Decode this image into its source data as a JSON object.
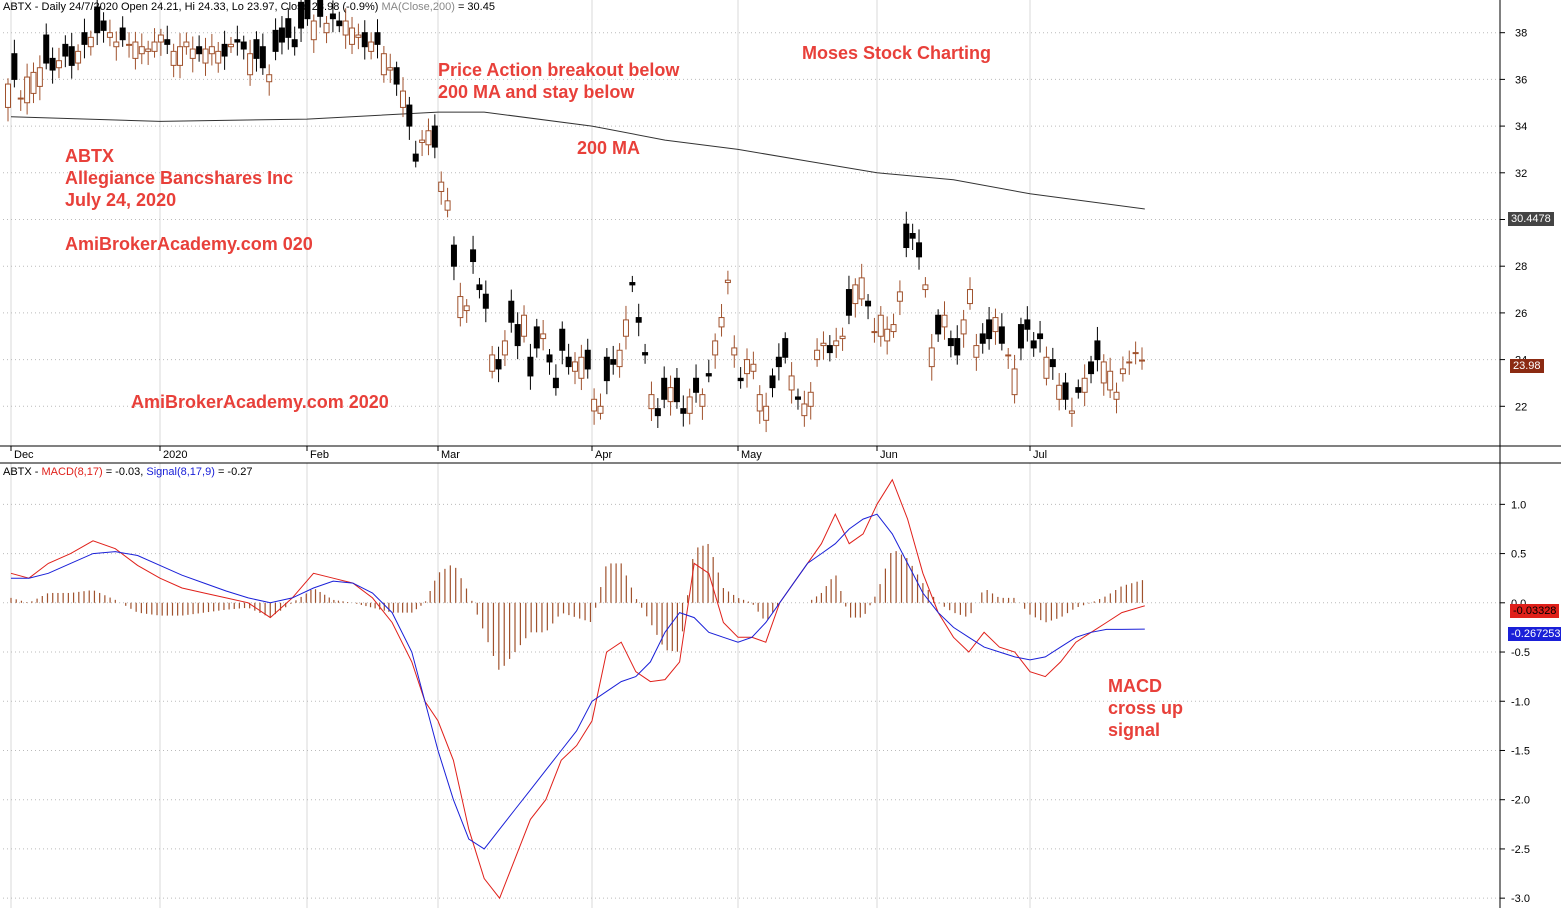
{
  "price_header": {
    "prefix": "ABTX - Daily 24/7/2020 Open 24.21, Hi 24.33, Lo 23.97, Close 23.98 (-0.9%)",
    "ma_label": "MA(Close,200)",
    "ma_value": "= 30.45"
  },
  "macd_header": {
    "prefix": "ABTX - ",
    "macd_label": "MACD(8,17)",
    "macd_value": "= -0.03,",
    "signal_label": "Signal(8,17,9)",
    "signal_value": "= -0.27"
  },
  "annotations": {
    "company_ticker": "ABTX",
    "company_name": "Allegiance Bancshares Inc",
    "company_date": "July 24, 2020",
    "watermark_1": "AmiBrokerAcademy.com  020",
    "watermark_2": "AmiBrokerAcademy.com  2020",
    "breakout_line1": "Price Action breakout below",
    "breakout_line2": "200 MA and stay below",
    "ma_label": "200 MA",
    "brand": "Moses Stock Charting",
    "macd_line1": "MACD",
    "macd_line2": "cross up",
    "macd_line3": "signal"
  },
  "badges": {
    "ma_value": "30.4478",
    "close_value": "23.98",
    "macd_value": "-0.03328",
    "signal_value": "-0.267253"
  },
  "colors": {
    "up_candle": "#a0522d",
    "down_candle": "#000000",
    "macd_line": "#e0201a",
    "signal_line": "#1a20d8",
    "histogram": "#a0522d",
    "annotation": "#e8403a",
    "ma_line": "#333333"
  },
  "chart_data": [
    {
      "type": "candlestick",
      "title": "ABTX - Daily",
      "x_labels": [
        "Dec",
        "2020",
        "Feb",
        "Mar",
        "Apr",
        "May",
        "Jun",
        "Jul"
      ],
      "ylim": [
        20.3,
        39.4
      ],
      "yticks": [
        22,
        24,
        26,
        28,
        30,
        32,
        34,
        36,
        38
      ],
      "moving_average": {
        "name": "MA(Close,200)",
        "x_months": [
          0.0,
          1.0,
          2.0,
          3.0,
          3.3,
          4.0,
          4.5,
          5.0,
          5.5,
          6.0,
          6.5,
          7.0,
          7.75
        ],
        "values": [
          34.4,
          34.2,
          34.3,
          34.6,
          34.6,
          34.0,
          33.4,
          33.0,
          32.5,
          32.0,
          31.7,
          31.1,
          30.45
        ]
      },
      "closes": [
        35.8,
        36.0,
        35.2,
        36.1,
        36.3,
        36.5,
        36.7,
        36.4,
        36.8,
        37.0,
        36.6,
        37.2,
        37.5,
        37.8,
        38.0,
        38.1,
        38.0,
        37.6,
        37.7,
        37.5,
        37.6,
        37.4,
        37.3,
        37.6,
        37.9,
        37.5,
        37.2,
        37.4,
        37.6,
        37.3,
        37.1,
        37.3,
        37.4,
        37.2,
        37.0,
        37.5,
        37.6,
        37.3,
        37.1,
        36.9,
        36.5,
        36.2,
        37.2,
        37.6,
        37.8,
        37.4,
        38.2,
        38.6,
        38.5,
        38.7,
        38.4,
        38.6,
        38.3,
        38.5,
        38.2,
        37.9,
        37.4,
        37.6,
        37.5,
        37.1,
        36.5,
        35.8,
        35.5,
        34.0,
        32.5,
        33.4,
        33.8,
        33.1,
        31.6,
        30.8,
        28.0,
        26.7,
        26.3,
        28.2,
        27.0,
        26.2,
        24.2,
        23.6,
        24.8,
        25.6,
        24.6,
        25.9,
        23.3,
        24.5,
        25.1,
        23.9,
        22.8,
        24.4,
        23.7,
        23.9,
        24.1,
        23.6,
        22.3,
        22.0,
        23.1,
        23.8,
        24.4,
        25.7,
        27.2,
        25.6,
        24.2,
        22.5,
        21.6,
        22.3,
        22.8,
        22.2,
        21.7,
        22.4,
        22.6,
        22.5,
        23.3,
        24.8,
        25.8,
        27.4,
        24.5,
        23.1,
        24.0,
        23.8,
        22.5,
        22.0,
        22.8,
        23.7,
        24.1,
        23.3,
        22.3,
        22.1,
        22.6,
        24.4,
        24.7,
        24.3,
        24.8,
        25.0,
        25.9,
        27.2,
        27.5,
        26.3,
        25.2,
        25.9,
        25.3,
        25.5,
        26.9,
        28.8,
        29.2,
        28.4,
        27.2,
        24.5,
        25.1,
        25.9,
        24.6,
        24.2,
        25.7,
        27.0,
        24.6,
        24.7,
        24.9,
        25.8,
        24.7,
        24.2,
        23.6,
        24.5,
        25.3,
        24.5,
        24.9,
        24.1,
        23.7,
        22.9,
        22.3,
        21.8,
        22.6,
        23.2,
        23.4,
        24.0,
        23.9,
        23.5,
        22.6,
        23.6,
        23.9,
        24.3,
        23.98
      ],
      "moves": [
        1.0,
        -1.1,
        0.0,
        1.1,
        0.9,
        0.8,
        -1.2,
        -0.5,
        0.3,
        -0.5,
        -0.8,
        0.5,
        -0.5,
        0.4,
        -1.1,
        -0.4,
        0.2,
        0.2,
        -0.5,
        0.0,
        0.7,
        0.3,
        0.1,
        0.4,
        0.3,
        -0.2,
        0.6,
        0.8,
        0.2,
        0.4,
        -0.3,
        0.6,
        0.3,
        0.5,
        -0.5,
        0.1,
        -0.1,
        -0.3,
        0.9,
        -0.8,
        -0.9,
        0.3,
        -0.9,
        -0.6,
        -0.8,
        -0.3,
        -1.1,
        -1.1,
        0.8,
        -1.1,
        0.4,
        -0.2,
        -0.2,
        0.6,
        0.7,
        0.1,
        -0.6,
        0.4,
        -0.5,
        0.9,
        0.1,
        -0.7,
        0.7,
        -0.9,
        -0.3,
        0.1,
        0.6,
        -0.9,
        0.4,
        0.4,
        -0.9,
        0.9,
        0.2,
        -0.5,
        -0.2,
        -0.6,
        0.7,
        -0.4,
        0.6,
        -0.9,
        -0.9,
        0.9,
        -0.8,
        -0.9,
        0.2,
        -0.3,
        -0.4,
        -0.9,
        -0.4,
        0.4,
        0.9,
        -0.8,
        0.5,
        0.3,
        -1.0,
        -0.2,
        0.7,
        0.7,
        -0.1,
        -0.2,
        -0.1,
        0.6,
        -0.3,
        -0.9,
        0.6,
        -1.0,
        -0.2,
        0.7,
        -0.6,
        0.5,
        -0.1,
        0.6,
        0.4,
        0.1,
        0.3,
        -0.1,
        0.6,
        0.3,
        0.7,
        0.6,
        -0.5,
        -0.4,
        -0.8,
        0.6,
        -0.1,
        0.5,
        0.6,
        0.4,
        0.1,
        -0.3,
        0.2,
        0.1,
        -1.1,
        0.8,
        0.9,
        -0.2,
        0.0,
        0.9,
        0.5,
        0.3,
        0.4,
        -1.0,
        -0.2,
        -0.6,
        0.2,
        0.8,
        -0.8,
        0.5,
        -0.3,
        -0.7,
        0.6,
        0.6,
        0.5,
        -0.4,
        -0.8,
        0.6,
        -0.7,
        0.0,
        1.1,
        -1.0,
        -0.4,
        -0.3,
        -0.2,
        0.9,
        -0.3,
        0.6,
        -0.7,
        0.1,
        -0.2,
        0.6,
        -0.5,
        -0.8,
        0.9,
        0.8,
        0.3,
        0.2
      ]
    },
    {
      "type": "line",
      "title": "MACD(8,17) / Signal(8,17,9)",
      "x_labels": [
        "Dec",
        "2020",
        "Feb",
        "Mar",
        "Apr",
        "May",
        "Jun",
        "Jul"
      ],
      "ylim": [
        -3.1,
        1.42
      ],
      "yticks": [
        -3.0,
        -2.5,
        -2.0,
        -1.5,
        -1.0,
        -0.5,
        0.0,
        0.5,
        1.0
      ],
      "x_months": [
        0.0,
        0.12,
        0.25,
        0.4,
        0.55,
        0.7,
        0.85,
        1.0,
        1.15,
        1.3,
        1.45,
        1.6,
        1.75,
        1.9,
        2.05,
        2.2,
        2.35,
        2.5,
        2.65,
        2.8,
        2.9,
        3.0,
        3.1,
        3.2,
        3.3,
        3.4,
        3.5,
        3.6,
        3.7,
        3.8,
        3.9,
        4.0,
        4.1,
        4.2,
        4.3,
        4.4,
        4.5,
        4.6,
        4.7,
        4.8,
        4.9,
        5.0,
        5.1,
        5.2,
        5.3,
        5.4,
        5.5,
        5.6,
        5.7,
        5.8,
        5.9,
        6.0,
        6.1,
        6.2,
        6.3,
        6.4,
        6.5,
        6.6,
        6.7,
        6.8,
        6.9,
        7.0,
        7.1,
        7.2,
        7.3,
        7.4,
        7.5,
        7.6,
        7.75
      ],
      "series": [
        {
          "name": "MACD(8,17)",
          "values": [
            0.3,
            0.25,
            0.4,
            0.5,
            0.63,
            0.55,
            0.38,
            0.25,
            0.15,
            0.1,
            0.05,
            0.0,
            -0.15,
            0.05,
            0.3,
            0.25,
            0.2,
            0.05,
            -0.2,
            -0.6,
            -1.0,
            -1.2,
            -1.6,
            -2.3,
            -2.8,
            -3.0,
            -2.6,
            -2.2,
            -2.0,
            -1.6,
            -1.45,
            -1.2,
            -0.5,
            -0.4,
            -0.7,
            -0.8,
            -0.78,
            -0.6,
            0.4,
            0.3,
            -0.2,
            -0.35,
            -0.35,
            -0.4,
            0.0,
            0.2,
            0.4,
            0.6,
            0.9,
            0.6,
            0.7,
            1.0,
            1.25,
            0.85,
            0.3,
            -0.1,
            -0.35,
            -0.5,
            -0.3,
            -0.45,
            -0.5,
            -0.7,
            -0.75,
            -0.6,
            -0.4,
            -0.3,
            -0.2,
            -0.1,
            -0.03
          ]
        },
        {
          "name": "Signal(8,17,9)",
          "values": [
            0.25,
            0.25,
            0.3,
            0.4,
            0.5,
            0.52,
            0.48,
            0.38,
            0.28,
            0.2,
            0.12,
            0.05,
            0.0,
            0.05,
            0.15,
            0.22,
            0.2,
            0.1,
            -0.1,
            -0.5,
            -1.0,
            -1.5,
            -2.0,
            -2.4,
            -2.5,
            -2.3,
            -2.1,
            -1.9,
            -1.7,
            -1.5,
            -1.3,
            -1.0,
            -0.9,
            -0.8,
            -0.75,
            -0.6,
            -0.3,
            -0.1,
            -0.15,
            -0.3,
            -0.35,
            -0.4,
            -0.35,
            -0.2,
            0.0,
            0.2,
            0.4,
            0.5,
            0.6,
            0.75,
            0.85,
            0.9,
            0.7,
            0.4,
            0.1,
            -0.1,
            -0.25,
            -0.35,
            -0.45,
            -0.5,
            -0.55,
            -0.58,
            -0.55,
            -0.45,
            -0.35,
            -0.3,
            -0.27,
            -0.27,
            -0.267
          ]
        }
      ]
    }
  ]
}
